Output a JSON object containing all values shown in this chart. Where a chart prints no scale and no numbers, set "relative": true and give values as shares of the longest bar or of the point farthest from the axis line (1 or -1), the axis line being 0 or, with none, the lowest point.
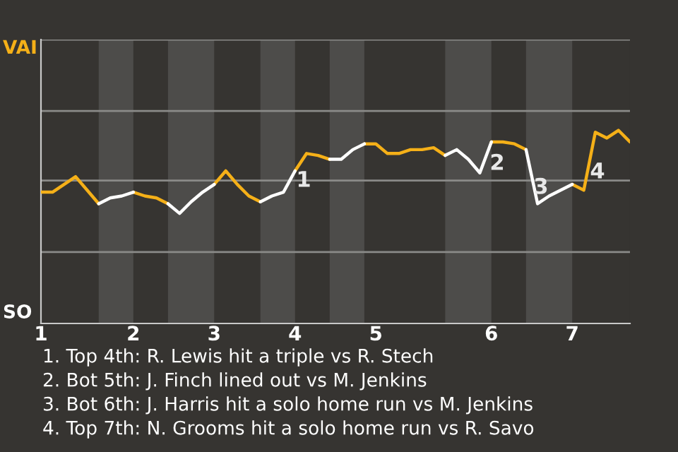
{
  "chart_data": {
    "type": "line",
    "relative": true,
    "categories": [
      "1",
      null,
      null,
      null,
      null,
      null,
      null,
      null,
      "2",
      null,
      null,
      null,
      null,
      null,
      null,
      "3",
      null,
      null,
      null,
      null,
      null,
      null,
      "4",
      null,
      null,
      null,
      null,
      null,
      null,
      "5",
      null,
      null,
      null,
      null,
      null,
      null,
      null,
      null,
      null,
      "6",
      null,
      null,
      null,
      null,
      null,
      null,
      "7",
      null,
      null,
      null,
      null,
      null
    ],
    "marker": "none",
    "line_style": "solid",
    "series": [
      {
        "color": "#f5b018",
        "values": [
          0.68,
          0.68,
          0.72,
          0.76,
          0.69,
          0.62,
          null,
          null,
          0.68,
          0.66,
          0.65,
          0.62,
          null,
          null,
          null,
          0.72,
          0.79,
          0.72,
          0.66,
          0.63,
          null,
          null,
          0.79,
          0.88,
          0.87,
          0.85,
          null,
          null,
          0.93,
          0.93,
          0.88,
          0.88,
          0.9,
          0.9,
          0.91,
          0.87,
          null,
          null,
          null,
          0.94,
          0.94,
          0.93,
          0.9,
          null,
          null,
          null,
          0.72,
          0.69,
          0.99,
          0.96,
          1,
          0.94
        ]
      },
      {
        "color": "#ffffff",
        "values": [
          null,
          null,
          null,
          null,
          null,
          0.62,
          0.65,
          0.66,
          0.68,
          null,
          null,
          0.62,
          0.57,
          0.63,
          0.68,
          0.72,
          null,
          null,
          null,
          0.63,
          0.66,
          0.68,
          0.79,
          null,
          null,
          0.85,
          0.85,
          0.9,
          0.93,
          null,
          null,
          null,
          null,
          null,
          null,
          0.87,
          0.9,
          0.85,
          0.78,
          0.94,
          null,
          null,
          0.9,
          0.62,
          0.66,
          0.69,
          0.72,
          null,
          null,
          null,
          null,
          null
        ]
      }
    ],
    "ref_lines": [
      {
        "axis": "y",
        "value": 0.37,
        "color": "#8a8a88"
      },
      {
        "axis": "y",
        "value": 0.74,
        "color": "#8a8a88"
      },
      {
        "axis": "y",
        "value": 1.1,
        "color": "#8a8a88"
      },
      {
        "axis": "y",
        "value": 1.47,
        "color": "#8a8a88"
      }
    ],
    "annotations": [
      "VAI",
      "SO",
      "1",
      "2",
      "3",
      "4",
      "1. Top 4th: R. Lewis hit a triple vs R. Stech",
      "2. Bot 5th: J. Finch lined out vs M. Jenkins",
      "3. Bot 6th: J. Harris hit a solo home run vs M. Jenkins",
      "4. Top 7th: N. Grooms hit a solo home run vs R. Savo"
    ]
  }
}
